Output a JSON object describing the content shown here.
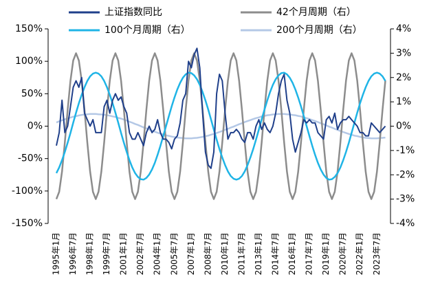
{
  "chart_data": {
    "type": "line",
    "categories": [
      "1995年1月",
      null,
      null,
      null,
      null,
      null,
      "1996年7月",
      null,
      null,
      null,
      null,
      null,
      "1998年1月",
      null,
      null,
      null,
      null,
      null,
      "1999年7月",
      null,
      null,
      null,
      null,
      null,
      "2001年1月",
      null,
      null,
      null,
      null,
      null,
      "2002年7月",
      null,
      null,
      null,
      null,
      null,
      "2004年1月",
      null,
      null,
      null,
      null,
      null,
      "2005年7月",
      null,
      null,
      null,
      null,
      null,
      "2007年1月",
      null,
      null,
      null,
      null,
      null,
      "2008年7月",
      null,
      null,
      null,
      null,
      null,
      "2010年1月",
      null,
      null,
      null,
      null,
      null,
      "2011年7月",
      null,
      null,
      null,
      null,
      null,
      "2013年1月",
      null,
      null,
      null,
      null,
      null,
      "2014年7月",
      null,
      null,
      null,
      null,
      null,
      "2016年1月",
      null,
      null,
      null,
      null,
      null,
      "2017年7月",
      null,
      null,
      null,
      null,
      null,
      "2019年1月",
      null,
      null,
      null,
      null,
      null,
      "2020年7月",
      null,
      null,
      null,
      null,
      null,
      "2022年1月",
      null,
      null,
      null,
      null,
      null,
      "2023年7月",
      null,
      null,
      null
    ],
    "series": [
      {
        "name": "上证指数同比",
        "color": "#1f3f8a",
        "axis": "y",
        "values": [
          -30,
          -10,
          40,
          -10,
          0,
          30,
          60,
          70,
          60,
          75,
          20,
          10,
          0,
          10,
          -10,
          -10,
          -10,
          30,
          40,
          20,
          40,
          50,
          40,
          45,
          30,
          20,
          -10,
          -20,
          -20,
          -10,
          -20,
          -30,
          -10,
          0,
          -10,
          -5,
          10,
          -10,
          -20,
          -20,
          -25,
          -35,
          -20,
          -15,
          5,
          40,
          50,
          100,
          90,
          110,
          120,
          90,
          20,
          -40,
          -60,
          -65,
          -40,
          50,
          80,
          70,
          20,
          -20,
          -10,
          -10,
          -5,
          -10,
          -20,
          -25,
          -10,
          -10,
          -20,
          0,
          10,
          -5,
          5,
          -5,
          -10,
          0,
          20,
          50,
          70,
          80,
          40,
          20,
          -20,
          -40,
          -25,
          -10,
          10,
          5,
          10,
          5,
          5,
          -10,
          -15,
          -20,
          10,
          15,
          5,
          20,
          -5,
          5,
          10,
          10,
          15,
          10,
          5,
          0,
          -10,
          -10,
          -15,
          -15,
          5,
          0,
          -5,
          -10,
          -5,
          0
        ]
      },
      {
        "name": "42个月周期（右）",
        "color": "#8c8c8c",
        "axis": "y2",
        "values": [
          -3,
          -2.7,
          -1.87,
          -0.67,
          0.67,
          1.87,
          2.7,
          3,
          2.7,
          1.87,
          0.67,
          -0.67,
          -1.87,
          -2.7,
          -3,
          -2.7,
          -1.87,
          -0.67,
          0.67,
          1.87,
          2.7,
          3,
          2.7,
          1.87,
          0.67,
          -0.67,
          -1.87,
          -2.7,
          -3,
          -2.7,
          -1.87,
          -0.67,
          0.67,
          1.87,
          2.7,
          3,
          2.7,
          1.87,
          0.67,
          -0.67,
          -1.87,
          -2.7,
          -3,
          -2.7,
          -1.87,
          -0.67,
          0.67,
          1.87,
          2.7,
          3,
          2.7,
          1.87,
          0.67,
          -0.67,
          -1.87,
          -2.7,
          -3,
          -2.7,
          -1.87,
          -0.67,
          0.67,
          1.87,
          2.7,
          3,
          2.7,
          1.87,
          0.67,
          -0.67,
          -1.87,
          -2.7,
          -3,
          -2.7,
          -1.87,
          -0.67,
          0.67,
          1.87,
          2.7,
          3,
          2.7,
          1.87,
          0.67,
          -0.67,
          -1.87,
          -2.7,
          -3,
          -2.7,
          -1.87,
          -0.67,
          0.67,
          1.87,
          2.7,
          3,
          2.7,
          1.87,
          0.67,
          -0.67,
          -1.87,
          -2.7,
          -3,
          -2.7,
          -1.87,
          -0.67,
          0.67,
          1.87,
          2.7,
          3,
          2.7,
          1.87,
          0.67,
          -0.67,
          -1.87,
          -2.7,
          -3,
          -2.7,
          -1.87,
          -0.67,
          0.67,
          1.87
        ]
      },
      {
        "name": "100个月周期（右）",
        "color": "#1fb4e6",
        "axis": "y2",
        "values": [
          -1.93,
          -1.7,
          -1.4,
          -1.06,
          -0.68,
          -0.28,
          0.14,
          0.55,
          0.94,
          1.29,
          1.6,
          1.86,
          2.05,
          2.16,
          2.2,
          2.16,
          2.05,
          1.86,
          1.6,
          1.29,
          0.94,
          0.55,
          0.14,
          -0.28,
          -0.68,
          -1.06,
          -1.4,
          -1.7,
          -1.93,
          -2.09,
          -2.18,
          -2.2,
          -2.13,
          -1.99,
          -1.78,
          -1.51,
          -1.18,
          -0.81,
          -0.41,
          0,
          0.41,
          0.81,
          1.18,
          1.51,
          1.78,
          1.99,
          2.13,
          2.2,
          2.18,
          2.09,
          1.93,
          1.7,
          1.4,
          1.06,
          0.68,
          0.28,
          -0.14,
          -0.55,
          -0.94,
          -1.29,
          -1.6,
          -1.86,
          -2.05,
          -2.16,
          -2.2,
          -2.16,
          -2.05,
          -1.86,
          -1.6,
          -1.29,
          -0.94,
          -0.55,
          -0.14,
          0.28,
          0.68,
          1.06,
          1.4,
          1.7,
          1.93,
          2.09,
          2.18,
          2.2,
          2.13,
          1.99,
          1.78,
          1.51,
          1.18,
          0.81,
          0.41,
          0,
          -0.41,
          -0.81,
          -1.18,
          -1.51,
          -1.78,
          -1.99,
          -2.13,
          -2.2,
          -2.18,
          -2.09,
          -1.93,
          -1.7,
          -1.4,
          -1.06,
          -0.68,
          -0.28,
          0.14,
          0.55,
          0.94,
          1.29,
          1.6,
          1.86,
          2.05,
          2.16,
          2.2,
          2.16,
          2.05,
          1.86
        ]
      },
      {
        "name": "200个月周期（右）",
        "color": "#b4c8e6",
        "axis": "y2",
        "values": [
          0.15,
          0.2,
          0.24,
          0.28,
          0.32,
          0.35,
          0.39,
          0.41,
          0.44,
          0.46,
          0.48,
          0.49,
          0.5,
          0.5,
          0.5,
          0.49,
          0.48,
          0.47,
          0.45,
          0.43,
          0.4,
          0.38,
          0.34,
          0.31,
          0.27,
          0.23,
          0.18,
          0.14,
          0.09,
          0.05,
          0,
          -0.05,
          -0.09,
          -0.14,
          -0.18,
          -0.23,
          -0.27,
          -0.31,
          -0.34,
          -0.38,
          -0.4,
          -0.43,
          -0.45,
          -0.47,
          -0.48,
          -0.49,
          -0.5,
          -0.5,
          -0.5,
          -0.49,
          -0.48,
          -0.46,
          -0.44,
          -0.41,
          -0.39,
          -0.35,
          -0.32,
          -0.28,
          -0.24,
          -0.2,
          -0.15,
          -0.11,
          -0.06,
          -0.02,
          0.03,
          0.08,
          0.12,
          0.17,
          0.21,
          0.25,
          0.29,
          0.33,
          0.36,
          0.4,
          0.42,
          0.45,
          0.46,
          0.48,
          0.49,
          0.5,
          0.5,
          0.5,
          0.49,
          0.48,
          0.46,
          0.45,
          0.42,
          0.4,
          0.36,
          0.33,
          0.29,
          0.25,
          0.21,
          0.17,
          0.12,
          0.08,
          0.03,
          -0.02,
          -0.06,
          -0.11,
          -0.15,
          -0.2,
          -0.24,
          -0.28,
          -0.32,
          -0.35,
          -0.39,
          -0.41,
          -0.44,
          -0.46,
          -0.48,
          -0.49,
          -0.5,
          -0.5,
          -0.5,
          -0.49,
          -0.48,
          -0.47
        ]
      }
    ],
    "ylim": [
      -150,
      150
    ],
    "yticks": [
      {
        "value": -150,
        "label": "-150%"
      },
      {
        "value": -100,
        "label": "-100%"
      },
      {
        "value": -50,
        "label": "-50%"
      },
      {
        "value": 0,
        "label": "0%"
      },
      {
        "value": 50,
        "label": "50%"
      },
      {
        "value": 100,
        "label": "100%"
      },
      {
        "value": 150,
        "label": "150%"
      }
    ],
    "y2lim": [
      -4,
      4
    ],
    "y2ticks": [
      {
        "value": -4,
        "label": "-4%"
      },
      {
        "value": -3,
        "label": "-3%"
      },
      {
        "value": -2,
        "label": "-2%"
      },
      {
        "value": -1,
        "label": "-1%"
      },
      {
        "value": 0,
        "label": "0%"
      },
      {
        "value": 1,
        "label": "1%"
      },
      {
        "value": 2,
        "label": "2%"
      },
      {
        "value": 3,
        "label": "3%"
      },
      {
        "value": 4,
        "label": "4%"
      }
    ],
    "legend": "top"
  }
}
